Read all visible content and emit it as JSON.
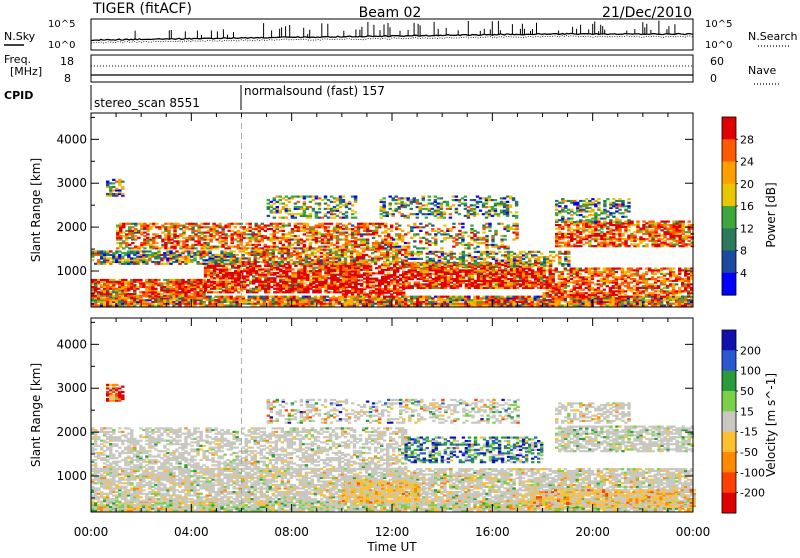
{
  "header": {
    "left_title": "TIGER (fitACF)",
    "center_title": "Beam 02",
    "right_title": "21/Dec/2010"
  },
  "summary": {
    "nsky_label": "N.Sky",
    "nsearch_label": "N.Search",
    "nsky_ticks": [
      "10^5",
      "10^0"
    ],
    "nsearch_ticks": [
      "10^5",
      "10^0"
    ],
    "freq_label_top": "Freq.",
    "freq_label_bottom": "[MHz]",
    "freq_ticks": [
      "18",
      "8"
    ],
    "nave_label": "Nave",
    "nave_ticks": [
      "60",
      "0"
    ],
    "cpid_label": "CPID",
    "cpid_segments": [
      {
        "name": "stereo_scan",
        "id": "8551"
      },
      {
        "name": "normalsound (fast)",
        "id": "157"
      }
    ],
    "cpid_switch_hour": 6.0
  },
  "chart_data": [
    {
      "type": "heatmap",
      "name": "power",
      "ylabel": "Slant Range [km]",
      "xlabel": "",
      "x_ticks": [
        "00:00",
        "04:00",
        "08:00",
        "12:00",
        "16:00",
        "20:00",
        "00:00"
      ],
      "x_range_hours": [
        0,
        24
      ],
      "y_ticks": [
        1000,
        2000,
        3000,
        4000
      ],
      "ylim": [
        180,
        4600
      ],
      "colorbar": {
        "label": "Power [dB]",
        "ticks": [
          "28",
          "24",
          "20",
          "16",
          "12",
          "8",
          "4"
        ],
        "colors": [
          "#e00000",
          "#ff5a00",
          "#ffa000",
          "#e8c600",
          "#3da63d",
          "#2a7a5a",
          "#1a4aa0",
          "#0000ff"
        ]
      },
      "regions": [
        {
          "t0": 0.0,
          "t1": 24.0,
          "r0": 200,
          "r1": 420,
          "mix": [
            0.18,
            0.22,
            0.2,
            0.14,
            0.1,
            0.08,
            0.05,
            0.03
          ],
          "d": 0.9
        },
        {
          "t0": 0.0,
          "t1": 4.5,
          "r0": 420,
          "r1": 800,
          "mix": [
            0.5,
            0.25,
            0.15,
            0.05,
            0.03,
            0.02,
            0,
            0
          ],
          "d": 0.85
        },
        {
          "t0": 4.5,
          "t1": 10.5,
          "r0": 500,
          "r1": 1150,
          "mix": [
            0.6,
            0.2,
            0.1,
            0.05,
            0.03,
            0.02,
            0,
            0
          ],
          "d": 0.8
        },
        {
          "t0": 10.0,
          "t1": 12.5,
          "r0": 450,
          "r1": 1150,
          "mix": [
            0.7,
            0.2,
            0.07,
            0.03,
            0,
            0,
            0,
            0
          ],
          "d": 0.7
        },
        {
          "t0": 12.5,
          "t1": 18.0,
          "r0": 600,
          "r1": 1200,
          "mix": [
            0.55,
            0.25,
            0.12,
            0.05,
            0.03,
            0,
            0,
            0
          ],
          "d": 0.85
        },
        {
          "t0": 18.0,
          "t1": 24.0,
          "r0": 400,
          "r1": 1050,
          "mix": [
            0.35,
            0.3,
            0.2,
            0.08,
            0.05,
            0.02,
            0,
            0
          ],
          "d": 0.65
        },
        {
          "t0": 0.0,
          "t1": 6.0,
          "r0": 1150,
          "r1": 1450,
          "mix": [
            0.05,
            0.08,
            0.12,
            0.15,
            0.2,
            0.2,
            0.12,
            0.08
          ],
          "d": 0.75
        },
        {
          "t0": 6.0,
          "t1": 12.5,
          "r0": 1150,
          "r1": 1500,
          "mix": [
            0.2,
            0.2,
            0.2,
            0.15,
            0.12,
            0.08,
            0.05,
            0
          ],
          "d": 0.7
        },
        {
          "t0": 12.5,
          "t1": 19.0,
          "r0": 1100,
          "r1": 1450,
          "mix": [
            0.05,
            0.1,
            0.15,
            0.2,
            0.2,
            0.15,
            0.1,
            0.05
          ],
          "d": 0.5
        },
        {
          "t0": 1.0,
          "t1": 12.0,
          "r0": 1500,
          "r1": 2100,
          "mix": [
            0.3,
            0.25,
            0.2,
            0.1,
            0.08,
            0.05,
            0.02,
            0
          ],
          "d": 0.6
        },
        {
          "t0": 12.0,
          "t1": 17.0,
          "r0": 1500,
          "r1": 2100,
          "mix": [
            0.1,
            0.15,
            0.2,
            0.2,
            0.15,
            0.1,
            0.06,
            0.04
          ],
          "d": 0.35
        },
        {
          "t0": 18.5,
          "t1": 24.0,
          "r0": 1550,
          "r1": 2150,
          "mix": [
            0.35,
            0.3,
            0.2,
            0.1,
            0.05,
            0,
            0,
            0
          ],
          "d": 0.7
        },
        {
          "t0": 7.0,
          "t1": 10.5,
          "r0": 2200,
          "r1": 2700,
          "mix": [
            0.0,
            0.05,
            0.15,
            0.15,
            0.2,
            0.2,
            0.15,
            0.1
          ],
          "d": 0.45
        },
        {
          "t0": 11.5,
          "t1": 17.0,
          "r0": 2200,
          "r1": 2700,
          "mix": [
            0.0,
            0.05,
            0.1,
            0.15,
            0.2,
            0.2,
            0.2,
            0.1
          ],
          "d": 0.4
        },
        {
          "t0": 18.5,
          "t1": 21.5,
          "r0": 2100,
          "r1": 2650,
          "mix": [
            0,
            0.05,
            0.1,
            0.15,
            0.2,
            0.25,
            0.15,
            0.1
          ],
          "d": 0.45
        },
        {
          "t0": 0.6,
          "t1": 1.3,
          "r0": 2700,
          "r1": 3100,
          "mix": [
            0,
            0.05,
            0.1,
            0.15,
            0.2,
            0.2,
            0.2,
            0.1
          ],
          "d": 0.7
        }
      ]
    },
    {
      "type": "heatmap",
      "name": "velocity",
      "ylabel": "Slant Range [km]",
      "xlabel": "Time UT",
      "x_ticks": [
        "00:00",
        "04:00",
        "08:00",
        "12:00",
        "16:00",
        "20:00",
        "00:00"
      ],
      "x_range_hours": [
        0,
        24
      ],
      "y_ticks": [
        1000,
        2000,
        3000,
        4000
      ],
      "ylim": [
        180,
        4600
      ],
      "colorbar": {
        "label": "Velocity [m s^-1]",
        "ticks": [
          "200",
          "100",
          "50",
          "15",
          "-15",
          "-50",
          "-100",
          "-200"
        ],
        "colors": [
          "#1010b0",
          "#2a58d0",
          "#2a9a3a",
          "#7ad048",
          "#c8c8c0",
          "#ffbf30",
          "#ff8a00",
          "#ff4000",
          "#e00000"
        ]
      },
      "regions": [
        {
          "t0": 0.0,
          "t1": 24.0,
          "r0": 200,
          "r1": 420,
          "mix": [
            0,
            0,
            0.05,
            0.2,
            0.55,
            0.15,
            0.05,
            0,
            0
          ],
          "d": 0.9
        },
        {
          "t0": 0.0,
          "t1": 24.0,
          "r0": 420,
          "r1": 1150,
          "mix": [
            0,
            0,
            0.02,
            0.05,
            0.8,
            0.1,
            0.03,
            0,
            0
          ],
          "d": 0.75
        },
        {
          "t0": 10.0,
          "t1": 13.0,
          "r0": 380,
          "r1": 900,
          "mix": [
            0,
            0,
            0,
            0.02,
            0.3,
            0.5,
            0.15,
            0.03,
            0
          ],
          "d": 0.8
        },
        {
          "t0": 17.5,
          "t1": 24.0,
          "r0": 300,
          "r1": 700,
          "mix": [
            0,
            0,
            0,
            0.02,
            0.35,
            0.45,
            0.15,
            0.03,
            0
          ],
          "d": 0.75
        },
        {
          "t0": 0.0,
          "t1": 12.5,
          "r0": 1150,
          "r1": 2100,
          "mix": [
            0,
            0,
            0.02,
            0.03,
            0.88,
            0.05,
            0.02,
            0,
            0
          ],
          "d": 0.55
        },
        {
          "t0": 12.5,
          "t1": 18.0,
          "r0": 1300,
          "r1": 1900,
          "mix": [
            0.2,
            0.2,
            0.25,
            0.15,
            0.15,
            0.03,
            0.02,
            0,
            0
          ],
          "d": 0.5
        },
        {
          "t0": 18.5,
          "t1": 24.0,
          "r0": 1550,
          "r1": 2150,
          "mix": [
            0,
            0,
            0.05,
            0.1,
            0.8,
            0.05,
            0,
            0,
            0
          ],
          "d": 0.7
        },
        {
          "t0": 7.0,
          "t1": 17.0,
          "r0": 2200,
          "r1": 2750,
          "mix": [
            0.02,
            0.03,
            0.05,
            0.05,
            0.75,
            0.05,
            0.03,
            0.02,
            0
          ],
          "d": 0.4
        },
        {
          "t0": 18.5,
          "t1": 21.5,
          "r0": 2200,
          "r1": 2650,
          "mix": [
            0,
            0,
            0,
            0.03,
            0.85,
            0.08,
            0.04,
            0,
            0
          ],
          "d": 0.5
        },
        {
          "t0": 0.6,
          "t1": 1.3,
          "r0": 2700,
          "r1": 3100,
          "mix": [
            0,
            0,
            0,
            0.05,
            0.1,
            0.1,
            0.2,
            0.25,
            0.3
          ],
          "d": 0.7
        }
      ]
    }
  ]
}
